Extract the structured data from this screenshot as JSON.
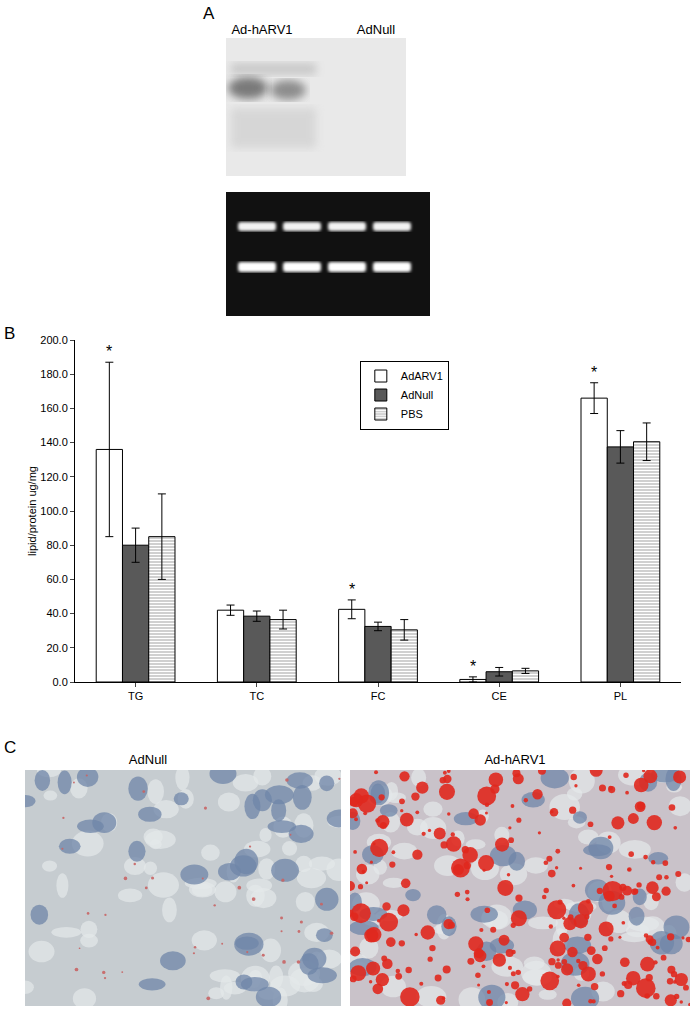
{
  "panel_a": {
    "label": "A",
    "lanes": [
      "Ad-hARV1",
      "AdNull"
    ]
  },
  "panel_c": {
    "label": "C",
    "images": [
      "AdNull",
      "Ad-hARV1"
    ]
  },
  "chart_data": {
    "type": "bar",
    "panel_label": "B",
    "y_label": "lipid/protein ug/mg",
    "categories": [
      "TG",
      "TC",
      "FC",
      "CE",
      "PL"
    ],
    "series": [
      {
        "name": "AdARV1",
        "color": "#ffffff",
        "values": [
          136,
          42,
          42.5,
          1.5,
          166
        ],
        "errors": [
          51,
          3,
          5.5,
          1.5,
          9
        ]
      },
      {
        "name": "AdNull",
        "color": "#595959",
        "values": [
          80,
          38.5,
          32.5,
          6,
          137.5
        ],
        "errors": [
          10,
          3,
          2.5,
          2.5,
          9.5
        ]
      },
      {
        "name": "PBS",
        "color": "#d0d0d0",
        "marker": "horizontal_lines",
        "values": [
          85,
          36.5,
          30.5,
          6.5,
          140.5
        ],
        "errors": [
          25,
          5.5,
          6,
          1.5,
          11
        ]
      }
    ],
    "annotations": [
      {
        "category": "TG",
        "series": "AdARV1",
        "text": "*"
      },
      {
        "category": "FC",
        "series": "AdARV1",
        "text": "*"
      },
      {
        "category": "CE",
        "series": "AdARV1",
        "text": "*"
      },
      {
        "category": "PL",
        "series": "AdARV1",
        "text": "*"
      }
    ],
    "ylim": [
      0,
      200
    ],
    "yticks": [
      {
        "value": 0,
        "label": "0.0"
      },
      {
        "value": 20,
        "label": "20.0"
      },
      {
        "value": 40,
        "label": "40.0"
      },
      {
        "value": 60,
        "label": "60.0"
      },
      {
        "value": 80,
        "label": "80.0"
      },
      {
        "value": 100,
        "label": "100.0"
      },
      {
        "value": 120,
        "label": "120.0"
      },
      {
        "value": 140,
        "label": "140.0"
      },
      {
        "value": 160,
        "label": "160.0"
      },
      {
        "value": 180,
        "label": "180.0"
      },
      {
        "value": 200,
        "label": "200.0"
      }
    ],
    "legend": "upper center",
    "grid": false
  }
}
